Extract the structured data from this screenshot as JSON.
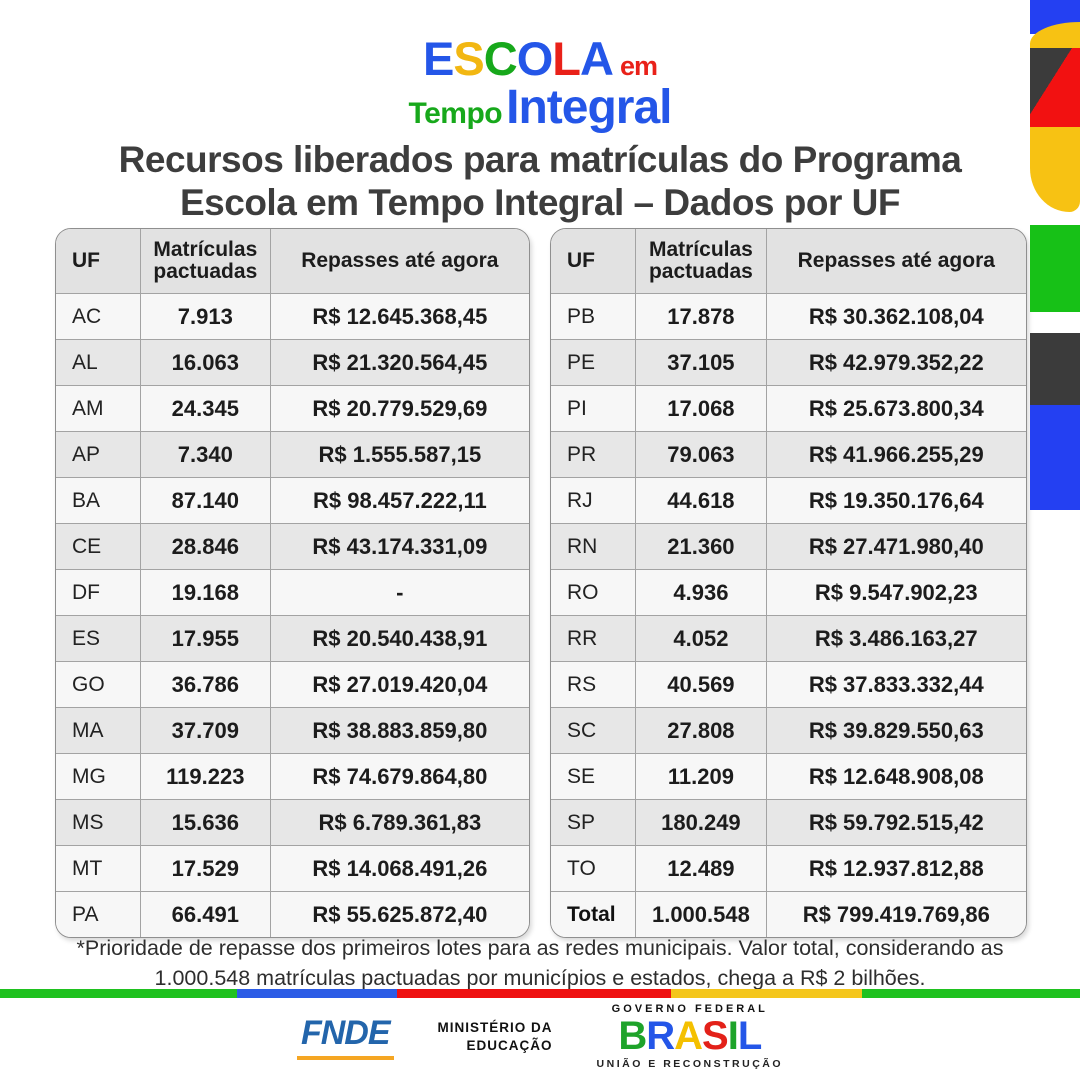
{
  "logo": {
    "escola": "ESCOLA",
    "escola_colors": [
      "#2456e8",
      "#f2b712",
      "#17a81b",
      "#2456e8",
      "#e92119",
      "#2456e8"
    ],
    "em": "em",
    "em_color": "#e92119",
    "tempo": "Tempo",
    "tempo_color": "#17a81b",
    "integral": "Integral",
    "integral_color": "#2456e8"
  },
  "title": {
    "line1": "Recursos liberados para matrículas do Programa",
    "line2": "Escola em Tempo Integral – Dados por UF"
  },
  "table_headers": {
    "uf": "UF",
    "matriculas": "Matrículas pactuadas",
    "repasses": "Repasses até agora"
  },
  "tables": [
    {
      "rows": [
        {
          "uf": "AC",
          "matriculas": "7.913",
          "repasses": "R$ 12.645.368,45"
        },
        {
          "uf": "AL",
          "matriculas": "16.063",
          "repasses": "R$ 21.320.564,45"
        },
        {
          "uf": "AM",
          "matriculas": "24.345",
          "repasses": "R$ 20.779.529,69"
        },
        {
          "uf": "AP",
          "matriculas": "7.340",
          "repasses": "R$ 1.555.587,15"
        },
        {
          "uf": "BA",
          "matriculas": "87.140",
          "repasses": "R$ 98.457.222,11"
        },
        {
          "uf": "CE",
          "matriculas": "28.846",
          "repasses": "R$ 43.174.331,09"
        },
        {
          "uf": "DF",
          "matriculas": "19.168",
          "repasses": "-"
        },
        {
          "uf": "ES",
          "matriculas": "17.955",
          "repasses": "R$ 20.540.438,91"
        },
        {
          "uf": "GO",
          "matriculas": "36.786",
          "repasses": "R$ 27.019.420,04"
        },
        {
          "uf": "MA",
          "matriculas": "37.709",
          "repasses": "R$ 38.883.859,80"
        },
        {
          "uf": "MG",
          "matriculas": "119.223",
          "repasses": "R$ 74.679.864,80"
        },
        {
          "uf": "MS",
          "matriculas": "15.636",
          "repasses": "R$ 6.789.361,83"
        },
        {
          "uf": "MT",
          "matriculas": "17.529",
          "repasses": "R$ 14.068.491,26"
        },
        {
          "uf": "PA",
          "matriculas": "66.491",
          "repasses": "R$ 55.625.872,40"
        }
      ]
    },
    {
      "rows": [
        {
          "uf": "PB",
          "matriculas": "17.878",
          "repasses": "R$ 30.362.108,04"
        },
        {
          "uf": "PE",
          "matriculas": "37.105",
          "repasses": "R$ 42.979.352,22"
        },
        {
          "uf": "PI",
          "matriculas": "17.068",
          "repasses": "R$ 25.673.800,34"
        },
        {
          "uf": "PR",
          "matriculas": "79.063",
          "repasses": "R$ 41.966.255,29"
        },
        {
          "uf": "RJ",
          "matriculas": "44.618",
          "repasses": "R$ 19.350.176,64"
        },
        {
          "uf": "RN",
          "matriculas": "21.360",
          "repasses": "R$ 27.471.980,40"
        },
        {
          "uf": "RO",
          "matriculas": "4.936",
          "repasses": "R$ 9.547.902,23"
        },
        {
          "uf": "RR",
          "matriculas": "4.052",
          "repasses": "R$ 3.486.163,27"
        },
        {
          "uf": "RS",
          "matriculas": "40.569",
          "repasses": "R$ 37.833.332,44"
        },
        {
          "uf": "SC",
          "matriculas": "27.808",
          "repasses": "R$ 39.829.550,63"
        },
        {
          "uf": "SE",
          "matriculas": "11.209",
          "repasses": "R$ 12.648.908,08"
        },
        {
          "uf": "SP",
          "matriculas": "180.249",
          "repasses": "R$ 59.792.515,42"
        },
        {
          "uf": "TO",
          "matriculas": "12.489",
          "repasses": "R$ 12.937.812,88"
        },
        {
          "uf": "Total",
          "matriculas": "1.000.548",
          "repasses": "R$ 799.419.769,86",
          "total": true
        }
      ]
    }
  ],
  "note": {
    "line1": "*Prioridade de repasse dos primeiros lotes para as redes municipais. Valor total, considerando as",
    "line2": "1.000.548 matrículas pactuadas por municípios e estados, chega a R$ 2 bilhões."
  },
  "footer": {
    "fnde": "FNDE",
    "mec_line1": "MINISTÉRIO DA",
    "mec_line2": "EDUCAÇÃO",
    "gov_top": "GOVERNO FEDERAL",
    "gov_brand": "BRASIL",
    "gov_brand_colors": [
      "#1ea32a",
      "#2456e8",
      "#f4c000",
      "#e32119",
      "#1ea32a",
      "#2456e8"
    ],
    "gov_bottom": "UNIÃO E RECONSTRUÇÃO"
  },
  "decor": {
    "palette": {
      "royal": "#2440f2",
      "dark": "#3b3b3b",
      "red": "#f21111",
      "yellow": "#f7c213",
      "green": "#17c117"
    },
    "bottom_stripe": [
      {
        "color": "#1fc11f",
        "width_pct": 21.9
      },
      {
        "color": "#2b5ce6",
        "width_pct": 14.9
      },
      {
        "color": "#ef1111",
        "width_pct": 25.3
      },
      {
        "color": "#f4c61c",
        "width_pct": 17.7
      },
      {
        "color": "#1fc11f",
        "width_pct": 20.2
      }
    ]
  },
  "chart_data": {
    "type": "table",
    "title": "Recursos liberados para matrículas do Programa Escola em Tempo Integral – Dados por UF",
    "columns": [
      "UF",
      "Matrículas pactuadas",
      "Repasses até agora"
    ],
    "rows": [
      [
        "AC",
        "7.913",
        "R$ 12.645.368,45"
      ],
      [
        "AL",
        "16.063",
        "R$ 21.320.564,45"
      ],
      [
        "AM",
        "24.345",
        "R$ 20.779.529,69"
      ],
      [
        "AP",
        "7.340",
        "R$ 1.555.587,15"
      ],
      [
        "BA",
        "87.140",
        "R$ 98.457.222,11"
      ],
      [
        "CE",
        "28.846",
        "R$ 43.174.331,09"
      ],
      [
        "DF",
        "19.168",
        "-"
      ],
      [
        "ES",
        "17.955",
        "R$ 20.540.438,91"
      ],
      [
        "GO",
        "36.786",
        "R$ 27.019.420,04"
      ],
      [
        "MA",
        "37.709",
        "R$ 38.883.859,80"
      ],
      [
        "MG",
        "119.223",
        "R$ 74.679.864,80"
      ],
      [
        "MS",
        "15.636",
        "R$ 6.789.361,83"
      ],
      [
        "MT",
        "17.529",
        "R$ 14.068.491,26"
      ],
      [
        "PA",
        "66.491",
        "R$ 55.625.872,40"
      ],
      [
        "PB",
        "17.878",
        "R$ 30.362.108,04"
      ],
      [
        "PE",
        "37.105",
        "R$ 42.979.352,22"
      ],
      [
        "PI",
        "17.068",
        "R$ 25.673.800,34"
      ],
      [
        "PR",
        "79.063",
        "R$ 41.966.255,29"
      ],
      [
        "RJ",
        "44.618",
        "R$ 19.350.176,64"
      ],
      [
        "RN",
        "21.360",
        "R$ 27.471.980,40"
      ],
      [
        "RO",
        "4.936",
        "R$ 9.547.902,23"
      ],
      [
        "RR",
        "4.052",
        "R$ 3.486.163,27"
      ],
      [
        "RS",
        "40.569",
        "R$ 37.833.332,44"
      ],
      [
        "SC",
        "27.808",
        "R$ 39.829.550,63"
      ],
      [
        "SE",
        "11.209",
        "R$ 12.648.908,08"
      ],
      [
        "SP",
        "180.249",
        "R$ 59.792.515,42"
      ],
      [
        "TO",
        "12.489",
        "R$ 12.937.812,88"
      ],
      [
        "Total",
        "1.000.548",
        "R$ 799.419.769,86"
      ]
    ],
    "footnote": "*Prioridade de repasse dos primeiros lotes para as redes municipais. Valor total, considerando as 1.000.548 matrículas pactuadas por municípios e estados, chega a R$ 2 bilhões."
  }
}
